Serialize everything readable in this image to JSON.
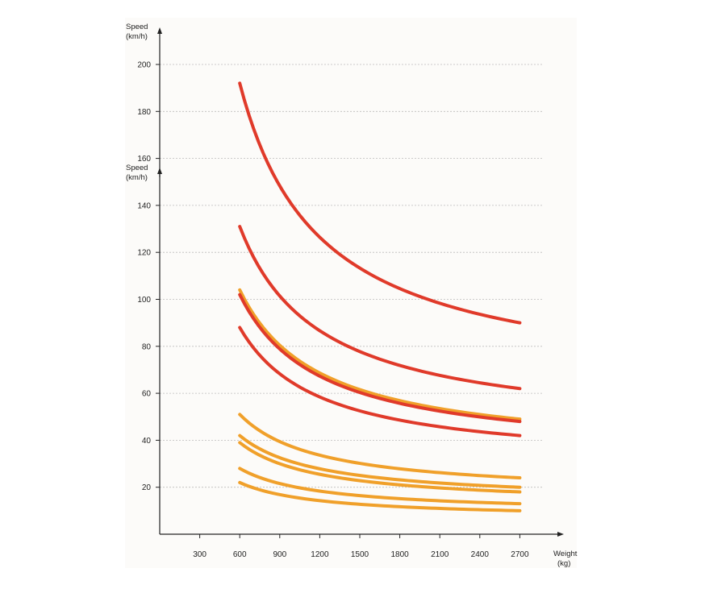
{
  "chart_data": {
    "type": "line",
    "x_axis": {
      "label_line1": "Weight",
      "label_line2": "(kg)",
      "ticks": [
        300,
        600,
        900,
        1200,
        1500,
        1800,
        2100,
        2400,
        2700
      ]
    },
    "y_axis": {
      "label_line1": "Speed",
      "label_line2": "(km/h)",
      "ticks": [
        20,
        40,
        60,
        80,
        100,
        120,
        140,
        160,
        180,
        200
      ],
      "ylim": [
        0,
        210
      ]
    },
    "y_axis_secondary": {
      "label_line1": "Speed",
      "label_line2": "(km/h)"
    },
    "xlim": [
      0,
      3000
    ],
    "grid": "horizontal dotted",
    "colors": {
      "red": "#e03a2a",
      "orange": "#f0a02a",
      "axis": "#222222",
      "grid": "#bbbbbb",
      "panel": "#fcfbf9"
    },
    "series": [
      {
        "color": "red",
        "points": [
          [
            600,
            192
          ],
          [
            2700,
            90
          ]
        ]
      },
      {
        "color": "red",
        "points": [
          [
            600,
            131
          ],
          [
            2700,
            62
          ]
        ]
      },
      {
        "color": "orange",
        "points": [
          [
            600,
            104
          ],
          [
            2700,
            49
          ]
        ]
      },
      {
        "color": "red",
        "points": [
          [
            600,
            102
          ],
          [
            2700,
            48
          ]
        ]
      },
      {
        "color": "red",
        "points": [
          [
            600,
            88
          ],
          [
            2700,
            42
          ]
        ]
      },
      {
        "color": "orange",
        "points": [
          [
            600,
            51
          ],
          [
            2700,
            24
          ]
        ]
      },
      {
        "color": "orange",
        "points": [
          [
            600,
            42
          ],
          [
            2700,
            20
          ]
        ]
      },
      {
        "color": "orange",
        "points": [
          [
            600,
            39
          ],
          [
            2700,
            18
          ]
        ]
      },
      {
        "color": "orange",
        "points": [
          [
            600,
            28
          ],
          [
            2700,
            13
          ]
        ]
      },
      {
        "color": "orange",
        "points": [
          [
            600,
            22
          ],
          [
            2700,
            10
          ]
        ]
      }
    ]
  }
}
